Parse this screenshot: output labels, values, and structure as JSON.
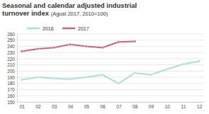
{
  "chart_data": {
    "type": "line",
    "title": "Seasonal and calendar adjusted industrial turnover index",
    "subtitle": "(Agust 2017, 2010=100)",
    "categories": [
      "01",
      "02",
      "03",
      "04",
      "05",
      "06",
      "07",
      "08",
      "09",
      "10",
      "11",
      "12"
    ],
    "series": [
      {
        "name": "2016",
        "color": "#a9ddd9",
        "marker": "circle",
        "values": [
          186,
          190,
          188,
          187,
          190,
          194,
          180,
          197,
          194,
          203,
          211,
          216
        ]
      },
      {
        "name": "2017",
        "color": "#c8628a",
        "marker": "circle",
        "values": [
          232,
          236,
          238,
          243,
          240,
          238,
          247,
          248,
          null,
          null,
          null,
          null
        ]
      }
    ],
    "ylim": [
      150,
      260
    ],
    "yticks": [
      150,
      160,
      170,
      180,
      190,
      200,
      210,
      220,
      230,
      240,
      250,
      260
    ],
    "grid": true,
    "legend": "top-left"
  }
}
